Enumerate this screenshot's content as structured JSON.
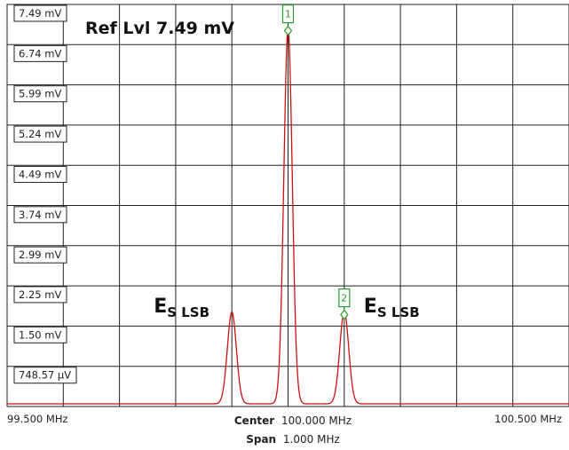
{
  "chart_data": {
    "type": "line",
    "reference_level": "Ref Lvl 7.49 mV",
    "y_ticks": [
      "7.49 mV",
      "6.74 mV",
      "5.99 mV",
      "5.24 mV",
      "4.49 mV",
      "3.74 mV",
      "2.99 mV",
      "2.25 mV",
      "1.50 mV",
      "748.57 µV"
    ],
    "y_tick_values_mV": [
      7.49,
      6.74,
      5.99,
      5.24,
      4.49,
      3.74,
      2.99,
      2.25,
      1.5,
      0.74857
    ],
    "ylim": [
      0,
      7.49
    ],
    "x_ticks": {
      "left": "99.500 MHz",
      "right": "100.500 MHz"
    },
    "xlim": [
      99.5,
      100.5
    ],
    "center": {
      "label": "Center",
      "value": "100.000 MHz"
    },
    "span": {
      "label": "Span",
      "value": "1.000 MHz"
    },
    "grid": true,
    "series": [
      {
        "color": "#cc1111",
        "floor": 0.05,
        "peaks": [
          {
            "x": 99.9,
            "y": 1.71,
            "width": 0.008
          },
          {
            "x": 100.0,
            "y": 7.0,
            "width": 0.0075
          },
          {
            "x": 100.1,
            "y": 1.71,
            "width": 0.008
          }
        ]
      }
    ],
    "markers": [
      {
        "label": "1",
        "x": 100.0,
        "y": 7.0
      },
      {
        "label": "2",
        "x": 100.1,
        "y": 1.71
      }
    ],
    "annotations": [
      {
        "main": "E",
        "sub": "S LSB",
        "x": 99.9
      },
      {
        "main": "E",
        "sub": "S LSB",
        "x": 100.1
      }
    ],
    "marker_color": "#2a9d2a"
  }
}
